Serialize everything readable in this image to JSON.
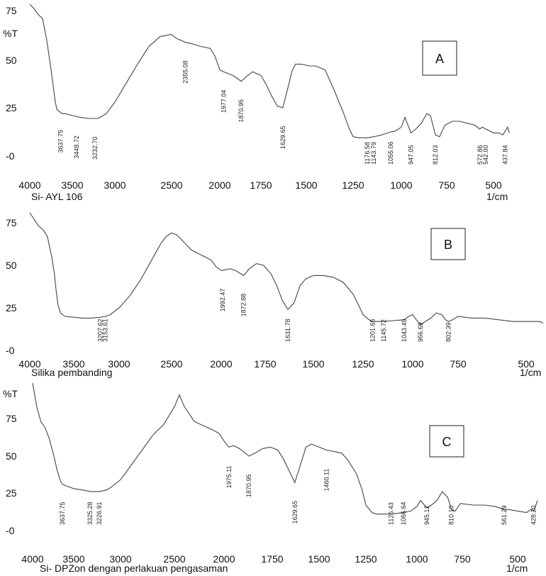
{
  "chart_data": [
    {
      "type": "line",
      "panel_label": "A",
      "ylabel": "%T",
      "xlabel": "Si- AYL 106",
      "x_unit": "1/cm",
      "xlim": [
        4000,
        400
      ],
      "ylim": [
        -2,
        78
      ],
      "xticks": [
        "4000",
        "3500",
        "3000",
        "2500",
        "2000",
        "1750",
        "1500",
        "1250",
        "1000",
        "750",
        "500"
      ],
      "yticks": [
        "75",
        "50",
        "25",
        "-0"
      ],
      "series": [
        {
          "x": [
            4000,
            3950,
            3900,
            3850,
            3800,
            3750,
            3700,
            3680,
            3650,
            3620,
            3580,
            3500,
            3400,
            3300,
            3200,
            3100,
            3000,
            2900,
            2800,
            2700,
            2600,
            2500,
            2450,
            2400,
            2355,
            2300,
            2200,
            2100,
            2050,
            2000,
            1977,
            1950,
            1920,
            1870,
            1830,
            1800,
            1750,
            1720,
            1690,
            1660,
            1630,
            1600,
            1580,
            1560,
            1530,
            1480,
            1450,
            1400,
            1350,
            1300,
            1270,
            1250,
            1220,
            1200,
            1176,
            1143,
            1100,
            1055,
            1030,
            1000,
            980,
            947,
            920,
            890,
            860,
            840,
            812,
            790,
            760,
            720,
            680,
            640,
            600,
            573,
            560,
            542,
            520,
            500,
            470,
            450,
            437,
            425,
            415
          ],
          "y": [
            78,
            76,
            73,
            71,
            60,
            45,
            28,
            24,
            23,
            22,
            22,
            21,
            20,
            19.5,
            19.5,
            22,
            28,
            38,
            48,
            57,
            62,
            63,
            61,
            60,
            59,
            58.5,
            57,
            56,
            52,
            45,
            44,
            43,
            42,
            39,
            42,
            44,
            42,
            37,
            31,
            26,
            25,
            36,
            44,
            48,
            48,
            47,
            47,
            45,
            34,
            22,
            14,
            10,
            9.5,
            9.5,
            9.5,
            10,
            11,
            12.5,
            13,
            15,
            20,
            12,
            14,
            17,
            22,
            21,
            11,
            10,
            16,
            18,
            18,
            17,
            16,
            14,
            15,
            14,
            13,
            12,
            12,
            11,
            13,
            15,
            12
          ]
        }
      ],
      "peaks": [
        "3637.75",
        "3448.72",
        "3232.70",
        "2355.08",
        "1977.04",
        "1870.95",
        "1629.65",
        "1176.58",
        "1143.79",
        "1055.06",
        "947.05",
        "812.03",
        "572.86",
        "542.00",
        "437.84"
      ]
    },
    {
      "type": "line",
      "panel_label": "B",
      "ylabel": "",
      "xlabel": "Silika pembanding",
      "x_unit": "1/cm",
      "xlim": [
        4000,
        400
      ],
      "ylim": [
        -2,
        78
      ],
      "xticks": [
        "4000",
        "3500",
        "3000",
        "2500",
        "2000",
        "1750",
        "1500",
        "1250",
        "1000",
        "750",
        "500"
      ],
      "yticks": [
        "75",
        "50",
        "25",
        "-0"
      ],
      "series": [
        {
          "x": [
            4000,
            3950,
            3900,
            3850,
            3800,
            3750,
            3720,
            3700,
            3680,
            3650,
            3600,
            3500,
            3400,
            3300,
            3200,
            3150,
            3100,
            3000,
            2900,
            2800,
            2700,
            2600,
            2550,
            2500,
            2450,
            2400,
            2300,
            2200,
            2100,
            2050,
            2000,
            1992,
            1950,
            1920,
            1873,
            1840,
            1800,
            1760,
            1720,
            1690,
            1660,
            1632,
            1600,
            1570,
            1540,
            1500,
            1450,
            1400,
            1350,
            1300,
            1270,
            1250,
            1220,
            1202,
            1146,
            1100,
            1043,
            1020,
            1000,
            980,
            957,
            930,
            900,
            870,
            840,
            820,
            802,
            780,
            750,
            700,
            650,
            600,
            550,
            500,
            450,
            400
          ],
          "y": [
            78,
            76,
            73,
            71,
            67,
            55,
            45,
            35,
            27,
            22,
            20,
            19.5,
            19,
            19,
            19.5,
            20,
            21,
            25,
            32,
            41,
            52,
            63,
            67,
            69,
            68,
            65,
            59,
            56,
            53,
            49,
            47,
            47,
            48,
            47,
            44,
            48,
            51,
            50,
            45,
            38,
            29,
            24,
            28,
            38,
            42,
            44,
            44,
            43,
            40,
            33,
            26,
            21,
            18,
            17,
            17,
            17.5,
            18,
            20,
            21,
            18,
            15,
            17,
            19,
            22,
            21,
            18,
            17,
            18,
            20,
            19,
            19,
            18,
            17,
            17,
            17,
            16
          ]
        }
      ],
      "peaks": [
        "3207.62",
        "3153.61",
        "1992.47",
        "1872.88",
        "1631.78",
        "1201.65",
        "1145.72",
        "1043.49",
        "956.69",
        "802.39"
      ]
    },
    {
      "type": "line",
      "panel_label": "C",
      "ylabel": "%T",
      "xlabel": "Si- DPZon dengan perlakuan pengasaman",
      "x_unit": "1/cm",
      "xlim": [
        4000,
        400
      ],
      "ylim": [
        -2,
        78
      ],
      "xticks": [
        "4000",
        "3500",
        "3000",
        "2500",
        "2000",
        "1750",
        "1500",
        "1250",
        "1000",
        "750",
        "500"
      ],
      "yticks": [
        "75",
        "50",
        "25",
        "-0"
      ],
      "series": [
        {
          "x": [
            4000,
            3950,
            3900,
            3850,
            3800,
            3750,
            3700,
            3660,
            3638,
            3600,
            3500,
            3400,
            3325,
            3227,
            3150,
            3100,
            3000,
            2900,
            2800,
            2700,
            2600,
            2500,
            2450,
            2400,
            2300,
            2200,
            2100,
            2050,
            2000,
            1975,
            1950,
            1920,
            1871,
            1840,
            1800,
            1760,
            1720,
            1690,
            1660,
            1630,
            1600,
            1570,
            1540,
            1500,
            1460,
            1420,
            1380,
            1350,
            1300,
            1270,
            1250,
            1220,
            1200,
            1126,
            1067,
            1030,
            1000,
            980,
            945,
            920,
            890,
            860,
            830,
            810,
            790,
            760,
            700,
            650,
            600,
            561,
            540,
            500,
            460,
            440,
            428,
            420,
            410
          ],
          "y": [
            78,
            76,
            73,
            69,
            62,
            52,
            40,
            33,
            31,
            30,
            28,
            27,
            26,
            26,
            27,
            29,
            34,
            44,
            54,
            64,
            71,
            76,
            77,
            76,
            73,
            70,
            67,
            65,
            60,
            56,
            57,
            55,
            50,
            52,
            55,
            56,
            54,
            48,
            40,
            32,
            44,
            56,
            58,
            56,
            54,
            53,
            52,
            48,
            38,
            27,
            17,
            12,
            11,
            11,
            12,
            13,
            16,
            20,
            15,
            17,
            20,
            26,
            22,
            14,
            13,
            18,
            17,
            17,
            16,
            14,
            14,
            13,
            12,
            14,
            13,
            16,
            20
          ]
        }
      ],
      "peaks": [
        "3637.75",
        "3325.28",
        "3226.91",
        "1975.11",
        "1870.95",
        "1629.65",
        "1460.11",
        "1126.43",
        "1066.64",
        "945.12",
        "810.10",
        "561.29",
        "428.20"
      ]
    }
  ]
}
